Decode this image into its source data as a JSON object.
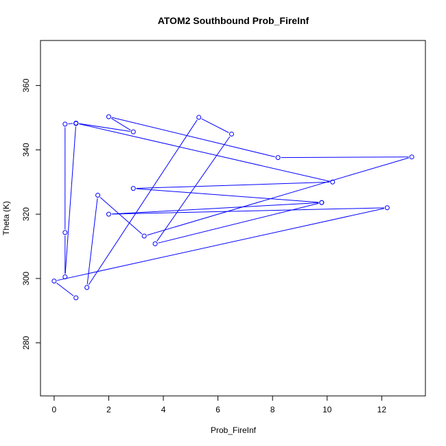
{
  "chart_data": {
    "type": "line",
    "title": "ATOM2 Southbound Prob_FireInf",
    "xlabel": "Prob_FireInf",
    "ylabel": "Theta (K)",
    "xlim": [
      -0.5,
      13.6
    ],
    "ylim": [
      263.5,
      374
    ],
    "xticks": [
      0,
      2,
      4,
      6,
      8,
      10,
      12
    ],
    "yticks": [
      280,
      300,
      320,
      340,
      360
    ],
    "grid": false,
    "line_color": "#0000ff",
    "marker": "open-circle",
    "series": [
      {
        "x": [
          0.8,
          0.0,
          12.2,
          2.0,
          9.8,
          2.9,
          10.2,
          0.8,
          0.4,
          0.4,
          0.4,
          0.8,
          0.8,
          2.9,
          2.0,
          8.2,
          13.1,
          3.3,
          1.6,
          1.2,
          5.3,
          6.5,
          3.7,
          9.8
        ],
        "y": [
          294,
          299.2,
          322,
          320,
          323.6,
          328,
          330,
          348.3,
          348,
          314.3,
          300.5,
          348.2,
          348.3,
          345.6,
          350.3,
          337.6,
          337.8,
          313.2,
          325.9,
          297.2,
          350.1,
          344.9,
          310.8,
          323.6
        ]
      }
    ]
  }
}
